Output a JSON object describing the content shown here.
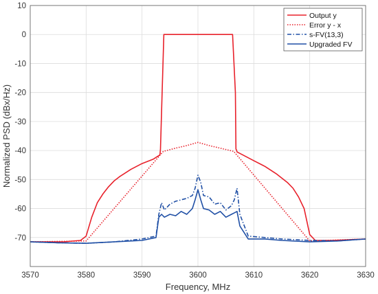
{
  "chart_data": {
    "type": "line",
    "xlabel": "Frequency, MHz",
    "ylabel": "Normalized PSD (dBx/Hz)",
    "xlim": [
      3570,
      3630
    ],
    "ylim": [
      -80,
      10
    ],
    "xticks": [
      3570,
      3580,
      3590,
      3600,
      3610,
      3620,
      3630
    ],
    "yticks": [
      10,
      0,
      -10,
      -20,
      -30,
      -40,
      -50,
      -60,
      -70
    ],
    "grid": true,
    "legend_position": "top-right",
    "series": [
      {
        "name": "Output y",
        "color": "#e8202a",
        "dash": "solid",
        "x": [
          3570,
          3576,
          3579,
          3580,
          3581,
          3582,
          3583,
          3584,
          3585,
          3586,
          3588,
          3590,
          3592,
          3593.2,
          3593.3,
          3593.6,
          3593.9,
          3597,
          3600,
          3603,
          3606.2,
          3606.7,
          3606.8,
          3606.9,
          3607,
          3608,
          3610,
          3612,
          3614,
          3615,
          3616,
          3617,
          3618,
          3619,
          3620,
          3621,
          3624,
          3630
        ],
        "values": [
          -71.5,
          -71.5,
          -71,
          -69.5,
          -63,
          -58,
          -55,
          -52.5,
          -50.5,
          -49,
          -46.5,
          -44.5,
          -43,
          -41.5,
          -39.5,
          -20,
          0,
          0,
          0,
          0,
          0,
          -20,
          -39.5,
          -39.8,
          -40.5,
          -41.5,
          -43.5,
          -45.5,
          -48,
          -49.5,
          -51,
          -53,
          -56,
          -60,
          -69,
          -71,
          -71,
          -70.5
        ]
      },
      {
        "name": "Error y - x",
        "color": "#e8202a",
        "dash": "dotted",
        "x": [
          3570,
          3580,
          3593.8,
          3596,
          3598,
          3600,
          3602,
          3604,
          3606.4,
          3620,
          3630
        ],
        "values": [
          -71.5,
          -71.2,
          -40.3,
          -39.2,
          -38.3,
          -37.2,
          -38.3,
          -39.2,
          -40.3,
          -71.2,
          -70.5
        ]
      },
      {
        "name": "s-FV(13,3)",
        "color": "#1f4fa5",
        "dash": "dashdot",
        "x": [
          3570,
          3575,
          3580,
          3585,
          3590,
          3592.5,
          3593,
          3593.5,
          3594,
          3595,
          3596,
          3597,
          3598,
          3599,
          3599.5,
          3600,
          3600.5,
          3601,
          3602,
          3603,
          3604,
          3605,
          3606,
          3606.5,
          3607,
          3607.5,
          3609,
          3612,
          3615,
          3620,
          3625,
          3630
        ],
        "values": [
          -71.5,
          -71.8,
          -72,
          -71.5,
          -70.5,
          -69.5,
          -62,
          -58,
          -60.5,
          -58.5,
          -57.5,
          -57,
          -56.5,
          -55.5,
          -53,
          -48.5,
          -51,
          -55.5,
          -56,
          -58.5,
          -58,
          -60.5,
          -59,
          -57,
          -53,
          -62,
          -69.5,
          -70,
          -70.5,
          -71,
          -71.2,
          -70.5
        ]
      },
      {
        "name": "Upgraded FV",
        "color": "#1f4fa5",
        "dash": "solid",
        "x": [
          3570,
          3575,
          3580,
          3585,
          3590,
          3592.5,
          3593,
          3593.5,
          3594,
          3595,
          3596,
          3597,
          3598,
          3599,
          3599.5,
          3600,
          3600.5,
          3601,
          3602,
          3603,
          3604,
          3605,
          3606,
          3606.5,
          3607,
          3607.5,
          3609,
          3612,
          3615,
          3620,
          3625,
          3630
        ],
        "values": [
          -71.5,
          -71.8,
          -72,
          -71.5,
          -71,
          -70,
          -63,
          -62,
          -63,
          -62,
          -62.5,
          -61,
          -62,
          -60,
          -57,
          -53.5,
          -57,
          -60,
          -60.5,
          -62,
          -61,
          -63,
          -62,
          -61.5,
          -61,
          -66,
          -70.5,
          -70.5,
          -71,
          -71.5,
          -71.2,
          -70.5
        ]
      }
    ]
  }
}
